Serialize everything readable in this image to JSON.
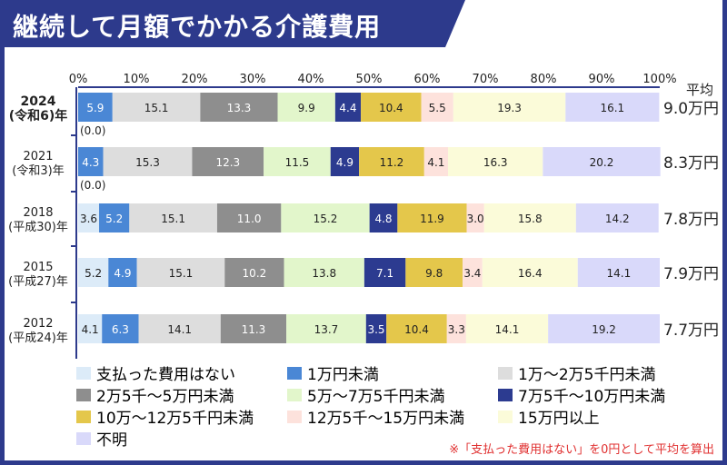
{
  "title": "継続して月額でかかる介護費用",
  "colors": {
    "frame": "#2d3a8c"
  },
  "chart_data": {
    "type": "bar",
    "orientation": "horizontal-stacked-100",
    "xlim": [
      0,
      100
    ],
    "x_ticks": [
      "0%",
      "10%",
      "20%",
      "30%",
      "40%",
      "50%",
      "60%",
      "70%",
      "80%",
      "90%",
      "100%"
    ],
    "average_header": "平均",
    "categories": [
      {
        "year": "2024",
        "era": "(令和6)年",
        "bold": true,
        "average": "9.0万円",
        "note": "(0.0)"
      },
      {
        "year": "2021",
        "era": "(令和3)年",
        "bold": false,
        "average": "8.3万円",
        "note": "(0.0)"
      },
      {
        "year": "2018",
        "era": "(平成30)年",
        "bold": false,
        "average": "7.8万円",
        "note": ""
      },
      {
        "year": "2015",
        "era": "(平成27)年",
        "bold": false,
        "average": "7.9万円",
        "note": ""
      },
      {
        "year": "2012",
        "era": "(平成24)年",
        "bold": false,
        "average": "7.7万円",
        "note": ""
      }
    ],
    "series": [
      {
        "name": "支払った費用はない",
        "color": "#dcebf8",
        "text": "#222",
        "values": [
          0.0,
          0.0,
          3.6,
          5.2,
          4.1
        ]
      },
      {
        "name": "1万円未満",
        "color": "#4a87d5",
        "text": "#fff",
        "values": [
          5.9,
          4.3,
          5.2,
          4.9,
          6.3
        ]
      },
      {
        "name": "1万～2万5千円未満",
        "color": "#dddddd",
        "text": "#222",
        "values": [
          15.1,
          15.3,
          15.1,
          15.1,
          14.1
        ]
      },
      {
        "name": "2万5千～5万円未満",
        "color": "#8e8e8e",
        "text": "#fff",
        "values": [
          13.3,
          12.3,
          11.0,
          10.2,
          11.3
        ]
      },
      {
        "name": "5万～7万5千円未満",
        "color": "#e2f6cb",
        "text": "#222",
        "values": [
          9.9,
          11.5,
          15.2,
          13.8,
          13.7
        ]
      },
      {
        "name": "7万5千～10万円未満",
        "color": "#2c3b90",
        "text": "#fff",
        "values": [
          4.4,
          4.9,
          4.8,
          7.1,
          3.5
        ]
      },
      {
        "name": "10万～12万5千円未満",
        "color": "#e4c74b",
        "text": "#222",
        "values": [
          10.4,
          11.2,
          11.9,
          9.8,
          10.4
        ]
      },
      {
        "name": "12万5千～15万円未満",
        "color": "#fde2dc",
        "text": "#222",
        "values": [
          5.5,
          4.1,
          3.0,
          3.4,
          3.3
        ]
      },
      {
        "name": "15万円以上",
        "color": "#fbfbd9",
        "text": "#222",
        "values": [
          19.3,
          16.3,
          15.8,
          16.4,
          14.1
        ]
      },
      {
        "name": "不明",
        "color": "#d9d9fa",
        "text": "#222",
        "values": [
          16.1,
          20.2,
          14.2,
          14.1,
          19.2
        ]
      }
    ],
    "footnote": "※「支払った費用はない」を0円として平均を算出"
  }
}
